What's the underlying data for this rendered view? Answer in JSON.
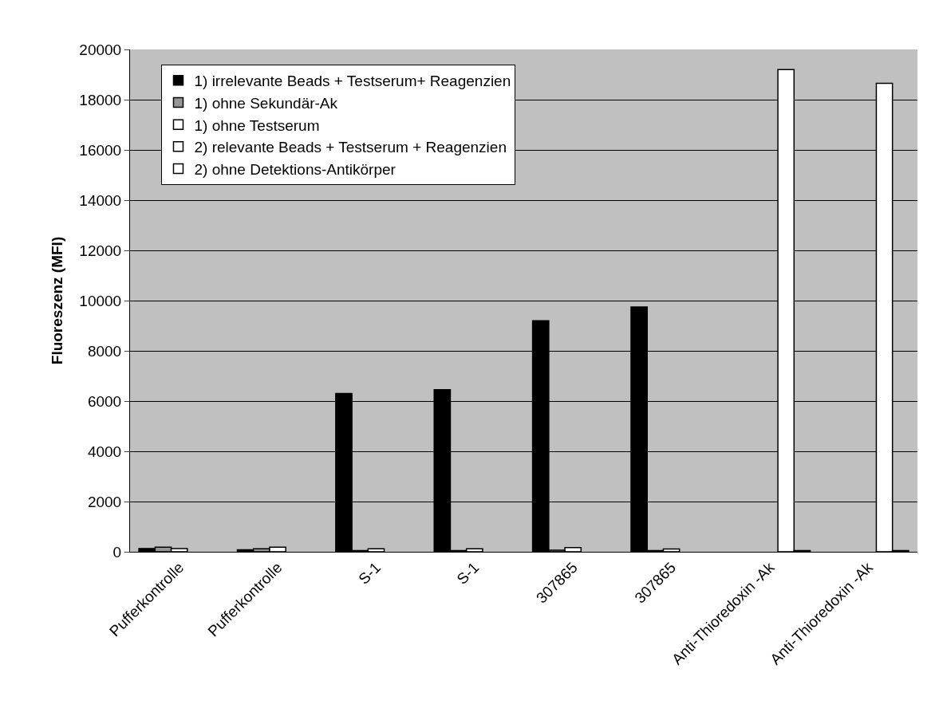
{
  "chart_data": {
    "type": "bar",
    "ylabel": "Fluoreszenz (MFI)",
    "categories": [
      "Pufferkontrolle",
      "Pufferkontrolle",
      "S-1",
      "S-1",
      "307865",
      "307865",
      "Anti-Thioredoxin -Ak",
      "Anti-Thioredoxin -Ak"
    ],
    "series": [
      {
        "name": "1) irrelevante Beads + Testserum+ Reagenzien",
        "color": "#000000",
        "values": [
          130,
          80,
          6300,
          6450,
          9200,
          9750,
          null,
          null
        ]
      },
      {
        "name": "1) ohne Sekundär-Ak",
        "color": "#969696",
        "values": [
          180,
          120,
          50,
          50,
          60,
          50,
          null,
          null
        ]
      },
      {
        "name": "1) ohne Testserum",
        "color": "#ffffff",
        "values": [
          130,
          180,
          120,
          120,
          170,
          110,
          null,
          null
        ]
      },
      {
        "name": "2) relevante Beads + Testserum + Reagenzien",
        "color": "#ffffff",
        "values": [
          null,
          null,
          null,
          null,
          null,
          null,
          19200,
          18650
        ]
      },
      {
        "name": "2) ohne Detektions-Antikörper",
        "color": "#ffffff",
        "values": [
          null,
          null,
          null,
          null,
          null,
          null,
          50,
          50
        ]
      }
    ],
    "ylim": [
      0,
      20000
    ],
    "yticks": [
      0,
      2000,
      4000,
      6000,
      8000,
      10000,
      12000,
      14000,
      16000,
      18000,
      20000
    ],
    "grid": "y",
    "legend": "top left"
  }
}
